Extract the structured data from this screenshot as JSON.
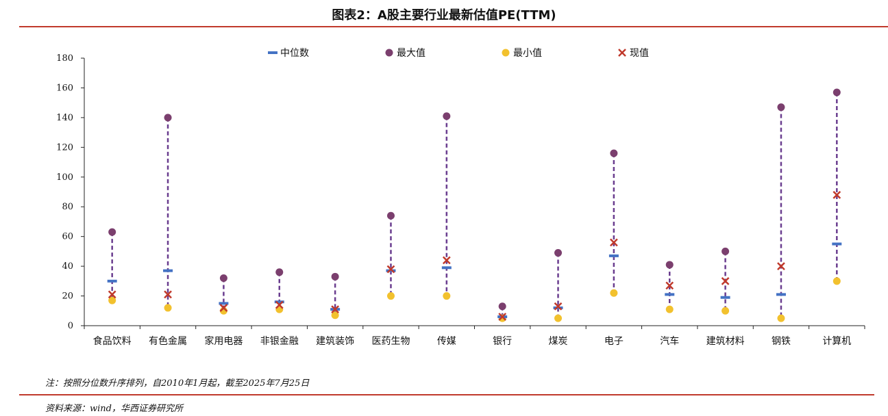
{
  "title": "图表2：A股主要行业最新估值PE(TTM)",
  "note": "注：按照分位数升序排列，自2010年1月起，截至2025年7月25日",
  "source": "资料来源：wind，华西证券研究所",
  "colors": {
    "median": "#4472c4",
    "max": "#7b3f6e",
    "min": "#f2c12e",
    "current": "#c0392b",
    "range_line": "#6a3d8f",
    "rule": "#c0392b"
  },
  "chart_data": {
    "type": "scatter",
    "categories": [
      "食品饮料",
      "有色金属",
      "家用电器",
      "非银金融",
      "建筑装饰",
      "医药生物",
      "传媒",
      "银行",
      "煤炭",
      "电子",
      "汽车",
      "建筑材料",
      "钢铁",
      "计算机"
    ],
    "series": [
      {
        "name": "中位数",
        "marker": "dash",
        "values": [
          30,
          37,
          15,
          16,
          11,
          37,
          39,
          6,
          12,
          47,
          21,
          19,
          21,
          55
        ]
      },
      {
        "name": "最大值",
        "marker": "circle",
        "values": [
          63,
          140,
          32,
          36,
          33,
          74,
          141,
          13,
          49,
          116,
          41,
          50,
          147,
          157
        ]
      },
      {
        "name": "最小值",
        "marker": "circle",
        "values": [
          17,
          12,
          10,
          11,
          7,
          20,
          20,
          5,
          5,
          22,
          11,
          10,
          5,
          30
        ]
      },
      {
        "name": "现值",
        "marker": "x",
        "values": [
          21,
          21,
          12,
          14,
          11,
          38,
          44,
          6,
          13,
          56,
          27,
          30,
          40,
          88
        ]
      }
    ],
    "y_ticks": [
      0,
      20,
      40,
      60,
      80,
      100,
      120,
      140,
      160,
      180
    ],
    "ylim": [
      0,
      180
    ],
    "grid": false,
    "legend_position": "top"
  }
}
